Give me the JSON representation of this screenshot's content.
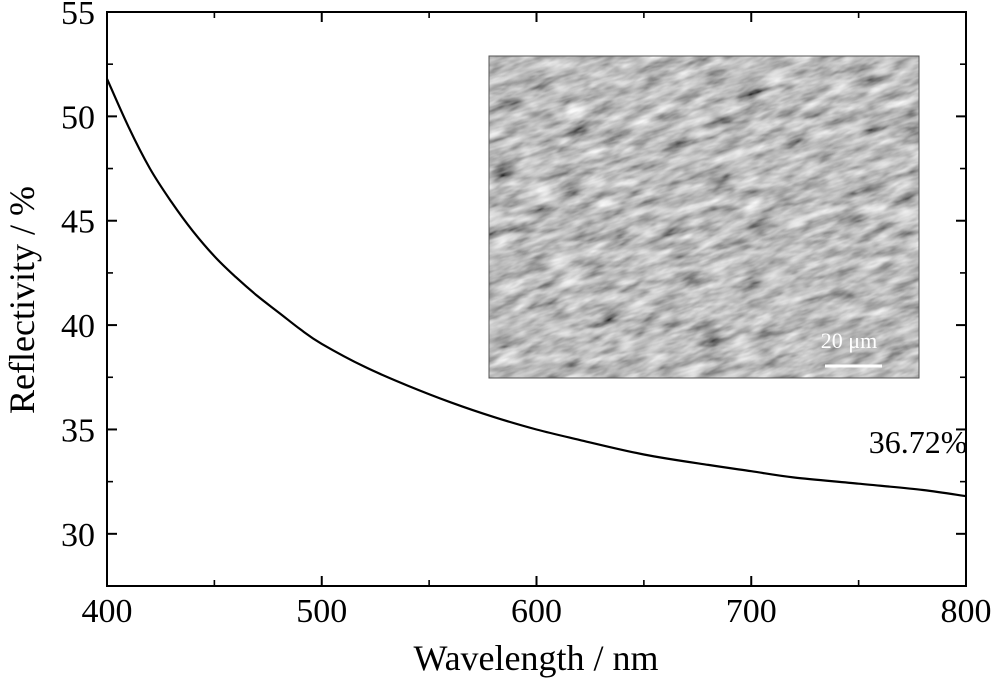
{
  "chart_data": {
    "type": "line",
    "xlabel": "Wavelength / nm",
    "ylabel": "Reflectivity / %",
    "xlim": [
      400,
      800
    ],
    "ylim": [
      27.5,
      55
    ],
    "x_ticks": [
      400,
      500,
      600,
      700,
      800
    ],
    "y_ticks": [
      30,
      35,
      40,
      45,
      50,
      55
    ],
    "x_minor_step": 50,
    "y_minor_step": 2.5,
    "grid": false,
    "series": [
      {
        "x": [
          400,
          410,
          420,
          430,
          440,
          450,
          460,
          470,
          480,
          490,
          500,
          520,
          540,
          560,
          580,
          600,
          620,
          650,
          680,
          700,
          720,
          750,
          780,
          800
        ],
        "y": [
          51.8,
          49.5,
          47.5,
          45.9,
          44.5,
          43.3,
          42.3,
          41.4,
          40.6,
          39.8,
          39.1,
          38.0,
          37.1,
          36.3,
          35.6,
          35.0,
          34.5,
          33.8,
          33.3,
          33.0,
          32.7,
          32.4,
          32.1,
          31.8
        ],
        "color": "#000000"
      }
    ],
    "annotations": [
      {
        "text": "36.72%",
        "x": 760,
        "y": 33.2
      }
    ],
    "inset": {
      "kind": "sem-micrograph",
      "scale_bar_label": "20 μm"
    }
  }
}
